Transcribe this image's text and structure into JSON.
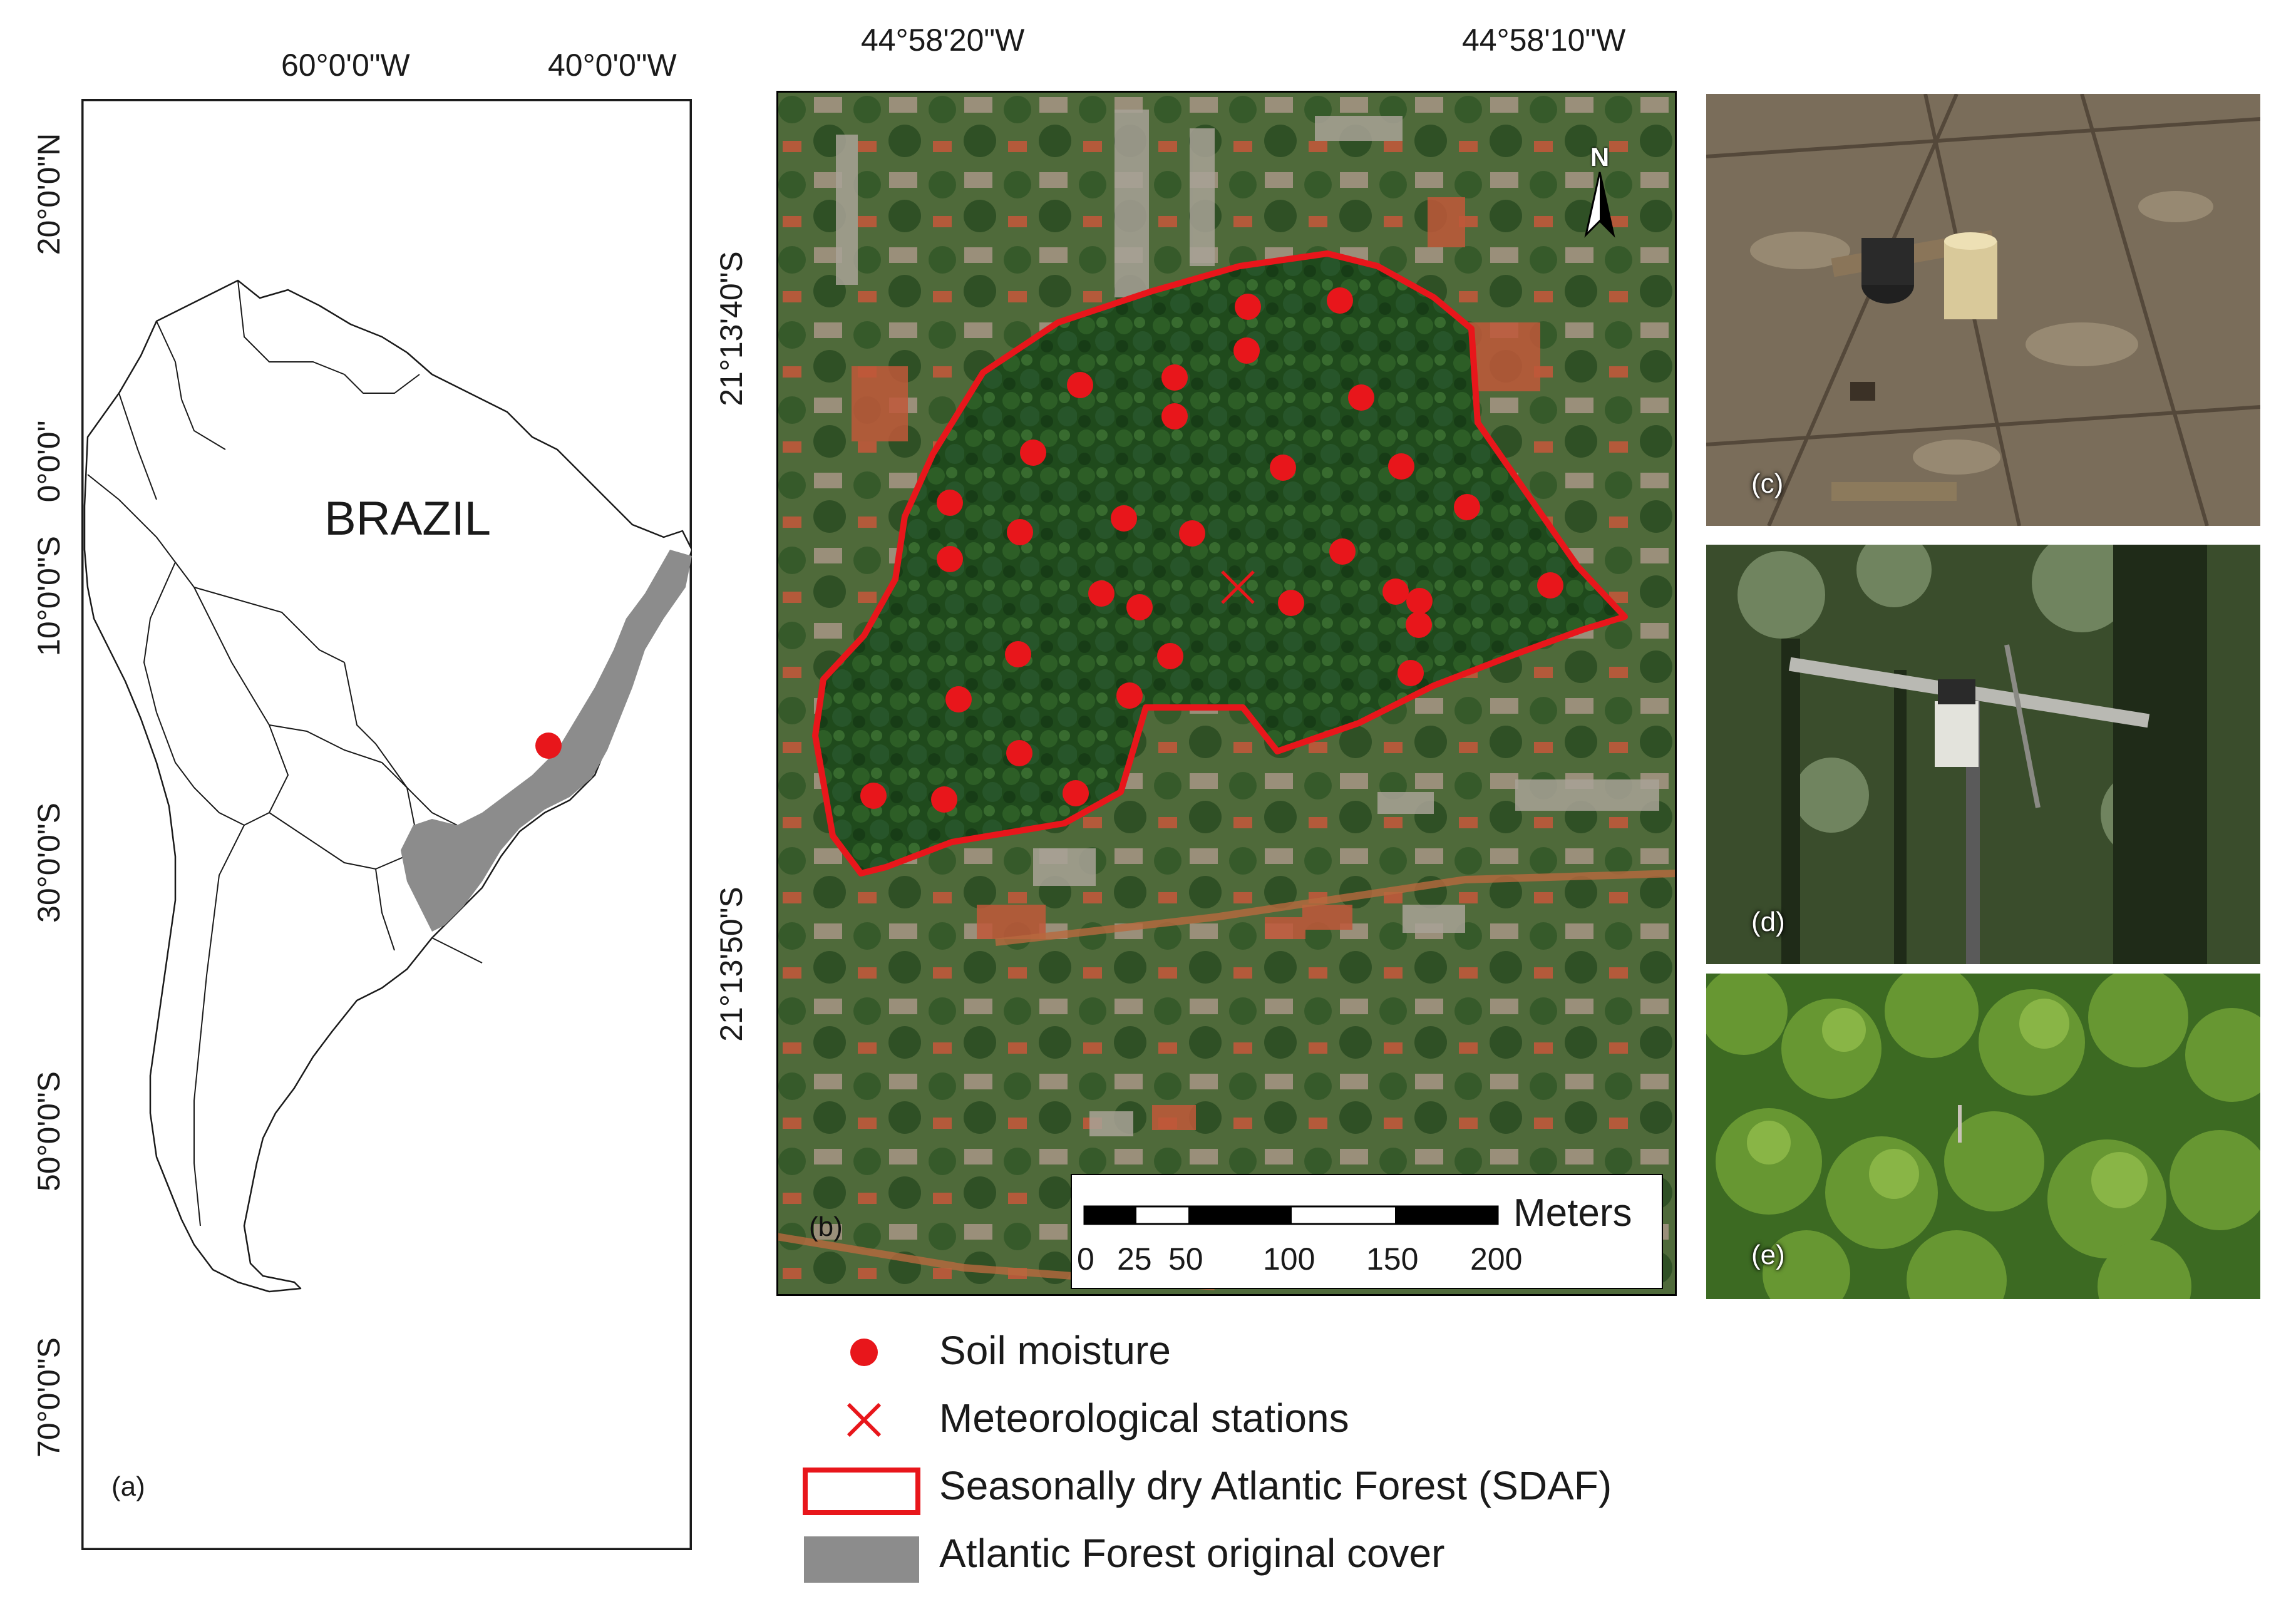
{
  "panel_a": {
    "label": "(a)",
    "country_label": "BRAZIL",
    "lon_labels": [
      "60°0'0\"W",
      "40°0'0\"W"
    ],
    "lat_labels": [
      "20°0'0\"N",
      "0°0'0\"",
      "10°0'0\"S",
      "30°0'0\"S",
      "50°0'0\"S",
      "70°0'0\"S"
    ]
  },
  "panel_b": {
    "label": "(b)",
    "lon_labels": [
      "44°58'20\"W",
      "44°58'10\"W"
    ],
    "lat_labels": [
      "21°13'40\"S",
      "21°13'50\"S"
    ],
    "north_label": "N",
    "scale": {
      "unit": "Meters",
      "ticks": [
        "0",
        "25",
        "50",
        "100",
        "150",
        "200"
      ]
    }
  },
  "photos": [
    {
      "label": "(c)"
    },
    {
      "label": "(d)"
    },
    {
      "label": "(e)"
    }
  ],
  "legend": [
    {
      "text": "Soil moisture",
      "symbol": "red-dot"
    },
    {
      "text": "Meteorological stations",
      "symbol": "red-cross"
    },
    {
      "text": "Seasonally dry Atlantic Forest (SDAF)",
      "symbol": "red-outline-box"
    },
    {
      "text": "Atlantic Forest original cover",
      "symbol": "gray-box"
    }
  ],
  "colors": {
    "marker": "#e8161b",
    "forest_cover": "#8c8c8c",
    "sdaf_outline": "#e8161b"
  }
}
